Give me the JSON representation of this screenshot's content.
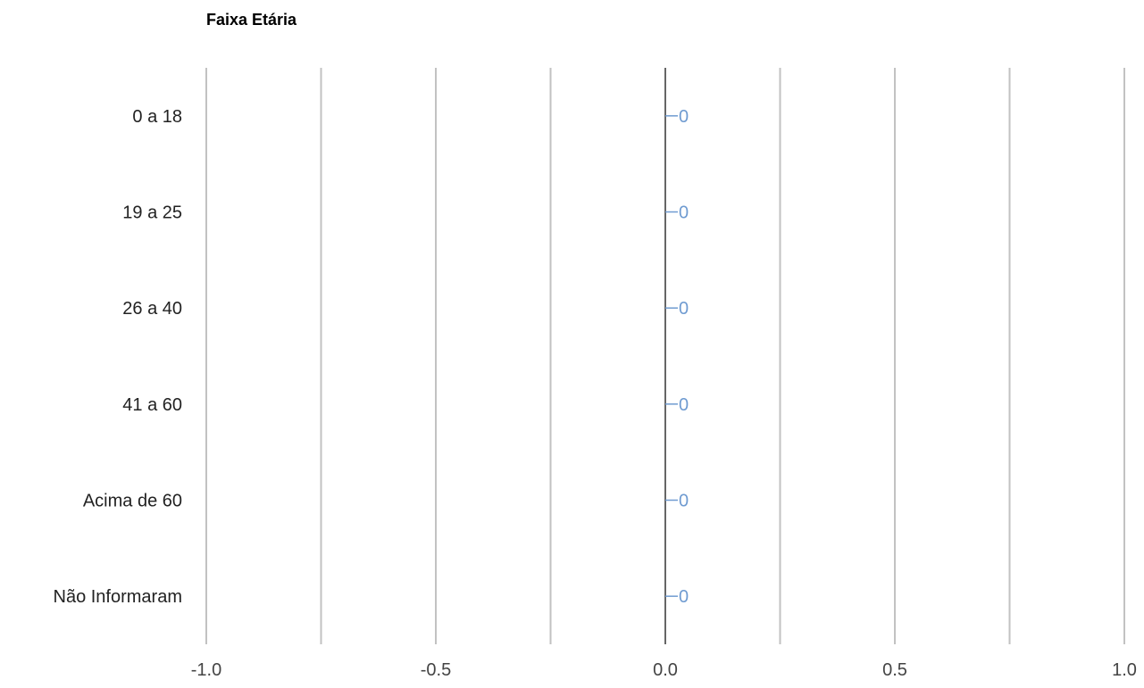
{
  "chart_data": {
    "type": "bar",
    "orientation": "horizontal",
    "title": "Faixa Etária",
    "categories": [
      "0 a 18",
      "19 a 25",
      "26 a 40",
      "41 a 60",
      "Acima de 60",
      "Não Informaram"
    ],
    "values": [
      0,
      0,
      0,
      0,
      0,
      0
    ],
    "data_labels": [
      "0",
      "0",
      "0",
      "0",
      "0",
      "0"
    ],
    "xlim": [
      -1.0,
      1.0
    ],
    "xticks": [
      -1.0,
      -0.5,
      0.0,
      0.5,
      1.0
    ],
    "xtick_labels": [
      "-1.0",
      "-0.5",
      "0.0",
      "0.5",
      "1.0"
    ],
    "minor_gridlines": [
      -0.75,
      -0.25,
      0.25,
      0.75
    ],
    "grid": true,
    "legend": "none",
    "colors": {
      "bar": "#6f9bd1",
      "label": "#6f9bd1",
      "grid": "#c2c2c2",
      "baseline": "#333333"
    }
  }
}
